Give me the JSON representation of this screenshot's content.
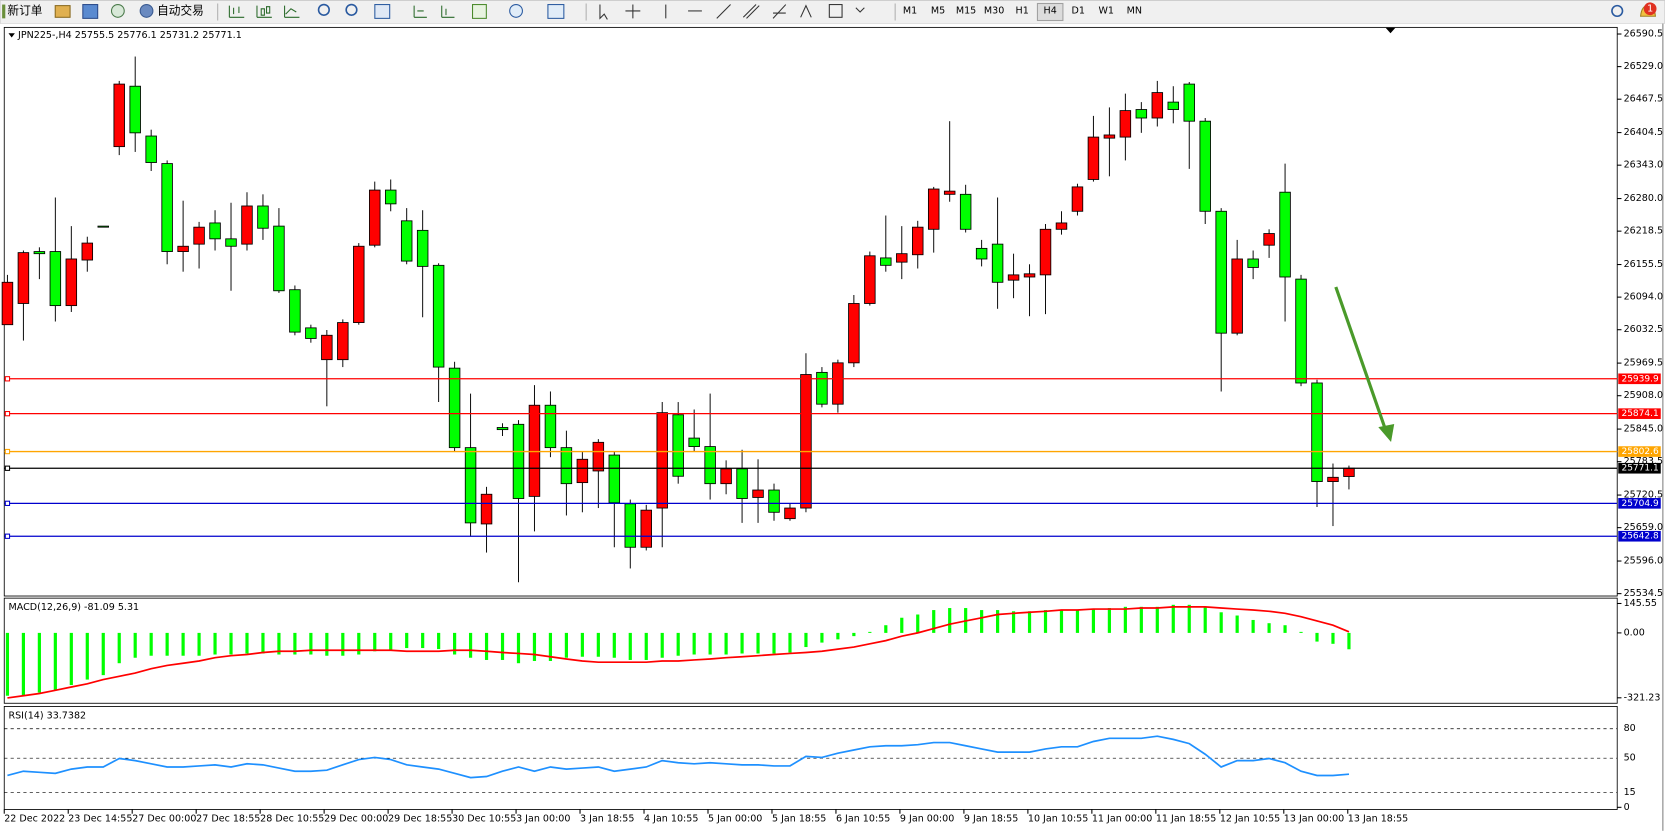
{
  "toolbar": {
    "new_order": "新订单",
    "auto_trading": "自动交易",
    "timeframes": [
      "M1",
      "M5",
      "M15",
      "M30",
      "H1",
      "H4",
      "D1",
      "W1",
      "MN"
    ],
    "badge": "1"
  },
  "chart_data": [
    {
      "type": "candlestick",
      "title": "JPN225-,H4  25755.5 25776.1 25731.2 25771.1",
      "up_color": "#ff0000",
      "down_color": "#00ff00",
      "x_labels": [
        "22 Dec 2022",
        "23 Dec 14:55",
        "27 Dec 00:00",
        "27 Dec 18:55",
        "28 Dec 10:55",
        "29 Dec 00:00",
        "29 Dec 18:55",
        "30 Dec 10:55",
        "3 Jan 00:00",
        "3 Jan 18:55",
        "4 Jan 10:55",
        "5 Jan 00:00",
        "5 Jan 18:55",
        "6 Jan 10:55",
        "9 Jan 00:00",
        "9 Jan 18:55",
        "10 Jan 10:55",
        "11 Jan 00:00",
        "11 Jan 18:55",
        "12 Jan 10:55",
        "13 Jan 00:00",
        "13 Jan 18:55"
      ],
      "open": [
        26042,
        26082,
        26180,
        26180,
        26078,
        26164,
        26228,
        26378,
        26492,
        26398,
        26346,
        26180,
        26194,
        26234,
        26204,
        26194,
        26266,
        26228,
        26108,
        26036,
        25976,
        25976,
        26046,
        26192,
        26296,
        26238,
        26220,
        26154,
        25960,
        25810,
        25666,
        25848,
        25854,
        25718,
        25890,
        25810,
        25744,
        25766,
        25796,
        25704,
        25622,
        25696,
        25872,
        25828,
        25812,
        25742,
        25770,
        25716,
        25730,
        25676,
        25696,
        25952,
        25892,
        25970,
        26082,
        26168,
        26160,
        26174,
        26222,
        26288,
        26288,
        26186,
        26194,
        26126,
        26132,
        26136,
        26222,
        26256,
        26316,
        26394,
        26396,
        26448,
        26432,
        26462,
        26496,
        26426,
        26256,
        26026,
        26166,
        26192,
        26292,
        26128,
        25932,
        25746,
        25755.5
      ],
      "high": [
        26136,
        26182,
        26188,
        26282,
        26228,
        26208,
        26228,
        26502,
        26548,
        26410,
        26352,
        26276,
        26236,
        26258,
        26272,
        26292,
        26288,
        26262,
        26116,
        26042,
        26032,
        26052,
        26196,
        26312,
        26316,
        26262,
        26258,
        26158,
        25972,
        25912,
        25736,
        25856,
        25862,
        25928,
        25916,
        25842,
        25802,
        25826,
        25802,
        25712,
        25702,
        25896,
        25896,
        25882,
        25912,
        25786,
        25806,
        25788,
        25742,
        25704,
        25988,
        25962,
        25976,
        26098,
        26180,
        26248,
        26228,
        26238,
        26302,
        26426,
        26306,
        26202,
        26282,
        26176,
        26156,
        26232,
        26256,
        26308,
        26436,
        26452,
        26478,
        26462,
        26502,
        26492,
        26500,
        26432,
        26262,
        26202,
        26182,
        26222,
        26346,
        26136,
        25938,
        25780,
        25776.1
      ],
      "low": [
        26042,
        26012,
        26128,
        26048,
        26066,
        26142,
        26226,
        26362,
        26368,
        26332,
        26156,
        26142,
        26148,
        26182,
        26106,
        26182,
        26202,
        26102,
        26022,
        26008,
        25888,
        25962,
        26042,
        26188,
        26256,
        26156,
        26056,
        25896,
        25802,
        25642,
        25612,
        25832,
        25556,
        25652,
        25792,
        25682,
        25688,
        25696,
        25622,
        25582,
        25616,
        25622,
        25742,
        25802,
        25712,
        25722,
        25668,
        25668,
        25672,
        25672,
        25688,
        25886,
        25876,
        25962,
        26078,
        26142,
        26128,
        26148,
        26178,
        26274,
        26216,
        26152,
        26072,
        26092,
        26058,
        26062,
        26212,
        26248,
        26312,
        26322,
        26352,
        26404,
        26416,
        26422,
        26336,
        26232,
        25916,
        26022,
        26128,
        26168,
        26048,
        25926,
        25698,
        25662,
        25731.2
      ],
      "close": [
        26122,
        26178,
        26176,
        26078,
        26166,
        26196,
        26226,
        26496,
        26404,
        26348,
        26180,
        26190,
        26226,
        26204,
        26190,
        26266,
        26224,
        26106,
        26028,
        26016,
        26022,
        26046,
        26190,
        26296,
        26270,
        26162,
        26152,
        25962,
        25810,
        25668,
        25722,
        25844,
        25714,
        25890,
        25810,
        25742,
        25788,
        25820,
        25706,
        25622,
        25692,
        25876,
        25756,
        25812,
        25742,
        25770,
        25714,
        25730,
        25688,
        25696,
        25948,
        25892,
        25970,
        26082,
        26172,
        26154,
        26176,
        26226,
        26298,
        26294,
        26222,
        26166,
        26122,
        26136,
        26138,
        26222,
        26234,
        26302,
        26396,
        26400,
        26446,
        26432,
        26480,
        26448,
        26426,
        26256,
        26026,
        26166,
        26150,
        26214,
        26132,
        25932,
        25746,
        25754,
        25771.1
      ],
      "ylim": [
        25530,
        26603
      ],
      "yticks": [
        26590.5,
        {
          "value": 26529,
          "label": "26529.0"
        },
        26467.5,
        26404.5,
        {
          "value": 26343,
          "label": "26343.0"
        },
        {
          "value": 26280,
          "label": "26280.0"
        },
        26218.5,
        26155.5,
        {
          "value": 26094,
          "label": "26094.0"
        },
        26032.5,
        25969.5,
        {
          "value": 25908,
          "label": "25908.0"
        },
        {
          "value": 25845,
          "label": "25845.0"
        },
        25783.5,
        25720.5,
        {
          "value": 25659,
          "label": "25659.0"
        },
        {
          "value": 25596,
          "label": "25596.0"
        },
        25534.5
      ],
      "levels": [
        {
          "value": 25939.9,
          "color": "#ff0000"
        },
        {
          "value": 25874.1,
          "color": "#ff0000"
        },
        {
          "value": 25802.6,
          "color": "#ffa500"
        },
        {
          "value": 25771.1,
          "color": "#000000"
        },
        {
          "value": 25704.9,
          "color": "#0000cd"
        },
        {
          "value": 25642.8,
          "color": "#0000cd"
        }
      ]
    },
    {
      "type": "macd",
      "title": "MACD(12,26,9) -81.09 5.31",
      "series": [
        {
          "style": "bar",
          "color": "#00ff00",
          "values": [
            -311,
            -311,
            -295,
            -284,
            -258,
            -231,
            -209,
            -150,
            -123,
            -113,
            -113,
            -113,
            -113,
            -107,
            -107,
            -102,
            -102,
            -107,
            -107,
            -107,
            -113,
            -113,
            -107,
            -91,
            -86,
            -75,
            -75,
            -80,
            -107,
            -123,
            -134,
            -134,
            -150,
            -139,
            -139,
            -123,
            -118,
            -118,
            -123,
            -134,
            -134,
            -123,
            -113,
            -107,
            -107,
            -107,
            -102,
            -102,
            -102,
            -97,
            -70,
            -48,
            -32,
            -16,
            5,
            38,
            75,
            91,
            113,
            123,
            123,
            113,
            113,
            107,
            107,
            113,
            113,
            113,
            118,
            123,
            129,
            129,
            129,
            139,
            139,
            129,
            102,
            86,
            64,
            48,
            38,
            5,
            -43,
            -54,
            -81.09
          ]
        },
        {
          "style": "line",
          "color": "#ff0000",
          "values": [
            -322,
            -311,
            -300,
            -284,
            -268,
            -252,
            -231,
            -215,
            -199,
            -177,
            -161,
            -150,
            -139,
            -123,
            -113,
            -107,
            -97,
            -91,
            -91,
            -86,
            -86,
            -86,
            -86,
            -86,
            -86,
            -91,
            -91,
            -91,
            -86,
            -86,
            -91,
            -97,
            -102,
            -107,
            -118,
            -129,
            -139,
            -145,
            -145,
            -145,
            -145,
            -139,
            -139,
            -134,
            -129,
            -123,
            -118,
            -113,
            -107,
            -102,
            -97,
            -91,
            -80,
            -70,
            -54,
            -38,
            -16,
            0,
            21,
            43,
            59,
            75,
            91,
            97,
            102,
            107,
            113,
            113,
            118,
            118,
            118,
            123,
            123,
            129,
            129,
            129,
            123,
            118,
            113,
            107,
            97,
            80,
            59,
            38,
            5.31
          ]
        }
      ],
      "ylim": [
        -343,
        172
      ],
      "yticks": [
        145.55,
        {
          "value": 0,
          "label": "0.00"
        },
        -321.23
      ]
    },
    {
      "type": "line",
      "title": "RSI(14) 33.7382",
      "series": [
        {
          "color": "#1e90ff",
          "values": [
            32.4,
            36.8,
            35.7,
            34.6,
            38.9,
            41.1,
            41.1,
            49.7,
            47.6,
            44.3,
            41.1,
            41.1,
            42.2,
            43.2,
            41.1,
            44.3,
            43.2,
            40,
            36.8,
            36.8,
            37.8,
            43.2,
            48.6,
            50.8,
            48.6,
            43.2,
            41.1,
            38.9,
            34.6,
            30.3,
            31.4,
            36.8,
            41.1,
            36.8,
            41.1,
            38.9,
            40,
            41.1,
            36.8,
            38.9,
            41.1,
            47.6,
            45.4,
            44.3,
            45.4,
            44.3,
            43.2,
            43.2,
            42.2,
            42.2,
            51.9,
            50.8,
            55.1,
            58.4,
            61.6,
            62.7,
            62.7,
            63.8,
            65.9,
            65.9,
            62.7,
            59.5,
            56.2,
            56.2,
            56.2,
            59.5,
            61.6,
            61.6,
            67,
            70.3,
            70.3,
            70.3,
            72.4,
            69.2,
            64.9,
            54.1,
            41.1,
            47.6,
            47.6,
            49.7,
            45.4,
            36.8,
            32.4,
            32.4,
            33.7382
          ]
        }
      ],
      "ylim": [
        0,
        100
      ],
      "yticks": [
        0,
        15,
        50,
        80
      ],
      "grid": true
    }
  ]
}
